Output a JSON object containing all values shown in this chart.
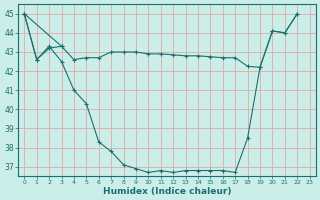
{
  "xlabel": "Humidex (Indice chaleur)",
  "bg_color": "#cceee8",
  "grid_color": "#ddaaaa",
  "line_color": "#1a7070",
  "xlim": [
    -0.5,
    23.5
  ],
  "ylim": [
    36.5,
    45.5
  ],
  "xticks": [
    0,
    1,
    2,
    3,
    4,
    5,
    6,
    7,
    8,
    9,
    10,
    11,
    12,
    13,
    14,
    15,
    16,
    17,
    18,
    19,
    20,
    21,
    22,
    23
  ],
  "yticks": [
    37,
    38,
    39,
    40,
    41,
    42,
    43,
    44,
    45
  ],
  "line1_x": [
    0,
    1,
    2,
    3,
    4,
    5,
    6,
    7,
    8,
    9,
    10,
    11,
    12,
    13,
    14,
    15,
    16,
    17,
    18,
    19,
    20,
    21,
    22
  ],
  "line1_y": [
    45.0,
    42.6,
    43.3,
    42.5,
    41.0,
    40.3,
    38.3,
    37.8,
    37.1,
    36.9,
    36.7,
    36.8,
    36.7,
    36.8,
    36.8,
    36.8,
    36.8,
    36.7,
    38.5,
    42.2,
    44.1,
    44.0,
    45.0
  ],
  "line2_x": [
    0,
    3,
    4,
    5,
    6,
    7,
    8,
    9,
    10,
    11,
    12,
    13,
    14,
    15,
    16,
    17,
    18,
    19,
    20,
    21,
    22
  ],
  "line2_y": [
    45.0,
    43.3,
    42.6,
    42.7,
    42.7,
    43.0,
    43.0,
    43.0,
    42.9,
    42.9,
    42.85,
    42.8,
    42.8,
    42.75,
    42.7,
    42.7,
    42.25,
    42.2,
    44.1,
    44.0,
    45.0
  ],
  "line3_x": [
    0,
    1,
    2,
    3
  ],
  "line3_y": [
    45.0,
    42.6,
    43.2,
    43.3
  ]
}
